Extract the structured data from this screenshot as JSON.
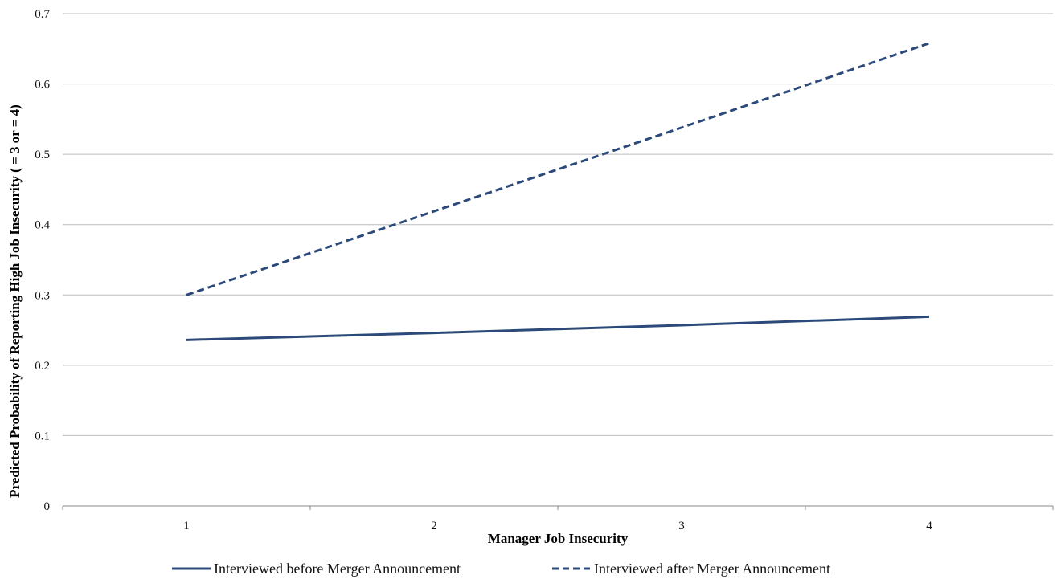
{
  "chart_data": {
    "type": "line",
    "title": "",
    "xlabel": "Manager Job Insecurity",
    "ylabel": "Predicted Probability of Reporting High Job Insecurity ( = 3 or = 4)",
    "categories": [
      1,
      2,
      3,
      4
    ],
    "xlim": [
      0.5,
      4.5
    ],
    "ylim": [
      0,
      0.7
    ],
    "yticks": [
      0,
      0.1,
      0.2,
      0.3,
      0.4,
      0.5,
      0.6,
      0.7
    ],
    "ytick_labels": [
      "0",
      "0.1",
      "0.2",
      "0.3",
      "0.4",
      "0.5",
      "0.6",
      "0.7"
    ],
    "xtick_labels": [
      "1",
      "2",
      "3",
      "4"
    ],
    "grid": "horizontal",
    "legend_position": "bottom",
    "series": [
      {
        "name": "Interviewed before Merger Announcement",
        "values": [
          0.236,
          0.246,
          0.257,
          0.269
        ],
        "style": "solid",
        "color": "#2b4a7a"
      },
      {
        "name": "Interviewed after Merger Announcement",
        "values": [
          0.3,
          0.419,
          0.538,
          0.658
        ],
        "style": "dashed",
        "color": "#2b4a7a"
      }
    ]
  }
}
